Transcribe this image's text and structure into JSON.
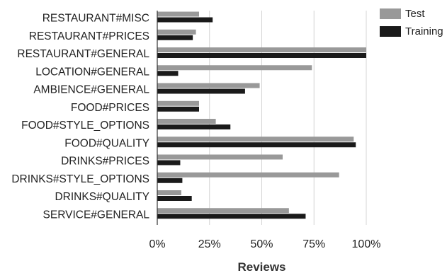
{
  "chart_data": {
    "type": "bar",
    "orientation": "horizontal",
    "categories": [
      "RESTAURANT#MISC",
      "RESTAURANT#PRICES",
      "RESTAURANT#GENERAL",
      "LOCATION#GENERAL",
      "AMBIENCE#GENERAL",
      "FOOD#PRICES",
      "FOOD#STYLE_OPTIONS",
      "FOOD#QUALITY",
      "DRINKS#PRICES",
      "DRINKS#STYLE_OPTIONS",
      "DRINKS#QUALITY",
      "SERVICE#GENERAL"
    ],
    "series": [
      {
        "name": "Test",
        "color": "#999999",
        "values": [
          20,
          18.5,
          100,
          74,
          49,
          20,
          28,
          94,
          60,
          87,
          11.5,
          63
        ]
      },
      {
        "name": "Training",
        "color": "#1a1a1a",
        "values": [
          26.5,
          17,
          100,
          10,
          42,
          20,
          35,
          95,
          11,
          12,
          16.5,
          71
        ]
      }
    ],
    "xlabel": "Reviews",
    "xlim": [
      0,
      100
    ],
    "xticks": [
      0,
      25,
      50,
      75,
      100
    ],
    "xtick_labels": [
      "0%",
      "25%",
      "50%",
      "75%",
      "100%"
    ],
    "grid": "vertical",
    "legend_position": "top-right"
  }
}
